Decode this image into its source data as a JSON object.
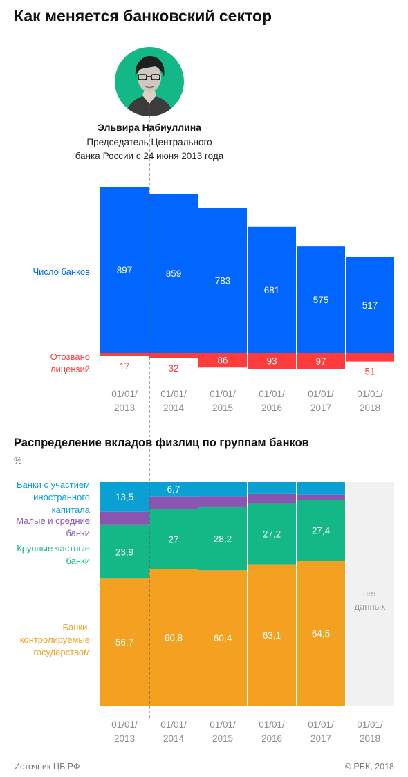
{
  "title": "Как меняется банковский сектор",
  "person": {
    "name": "Эльвира Набиуллина",
    "role_line1": "Председатель Центрального",
    "role_line2": "банка России с 24 июня 2013 года"
  },
  "colors": {
    "banks": "#0066ff",
    "revoked": "#ff3b3b",
    "foreign": "#0aa0d4",
    "small": "#8a55b0",
    "private": "#14b886",
    "state": "#f4a020",
    "nodata": "#f1f1f1",
    "tick": "#8c8c8c",
    "avatar_bg": "#14b886"
  },
  "chart_data": [
    {
      "type": "bar",
      "categories": [
        [
          "01/01/",
          "2013"
        ],
        [
          "01/01/",
          "2014"
        ],
        [
          "01/01/",
          "2015"
        ],
        [
          "01/01/",
          "2016"
        ],
        [
          "01/01/",
          "2017"
        ],
        [
          "01/01/",
          "2018"
        ]
      ],
      "series": [
        {
          "name": "Число банков",
          "values": [
            897,
            859,
            783,
            681,
            575,
            517
          ]
        },
        {
          "name_lines": [
            "Отозвано",
            "лицензий"
          ],
          "values": [
            17,
            32,
            86,
            93,
            97,
            51
          ]
        }
      ]
    },
    {
      "type": "bar",
      "title": "Распределение вкладов физлиц по группам банков",
      "unit": "%",
      "categories": [
        [
          "01/01/",
          "2013"
        ],
        [
          "01/01/",
          "2014"
        ],
        [
          "01/01/",
          "2015"
        ],
        [
          "01/01/",
          "2016"
        ],
        [
          "01/01/",
          "2017"
        ],
        [
          "01/01/",
          "2018"
        ]
      ],
      "series": [
        {
          "name_lines": [
            "Банки,",
            "контролируемые",
            "государством"
          ],
          "values": [
            56.7,
            60.8,
            60.4,
            63.1,
            64.5,
            null
          ],
          "labels": [
            "56,7",
            "60,8",
            "60,4",
            "63,1",
            "64,5",
            ""
          ]
        },
        {
          "name_lines": [
            "Крупные частные",
            "банки"
          ],
          "values": [
            23.9,
            27,
            28.2,
            27.2,
            27.4,
            null
          ],
          "labels": [
            "23,9",
            "27",
            "28,2",
            "27,2",
            "27,4",
            ""
          ]
        },
        {
          "name_lines": [
            "Малые и средние",
            "банки"
          ],
          "values": [
            5.9,
            5.5,
            4.8,
            4.2,
            2.3,
            null
          ],
          "labels": [
            "",
            "",
            "",
            "",
            "",
            ""
          ]
        },
        {
          "name_lines": [
            "Банки с участием",
            "иностранного",
            "капитала"
          ],
          "values": [
            13.5,
            6.7,
            6.6,
            5.5,
            5.8,
            null
          ],
          "labels": [
            "13,5",
            "6,7",
            "",
            "",
            "",
            ""
          ]
        }
      ],
      "no_data_label": [
        "нет",
        "данных"
      ]
    }
  ],
  "footer": {
    "source": "Источник ЦБ РФ",
    "copyright": "© РБК, 2018"
  }
}
